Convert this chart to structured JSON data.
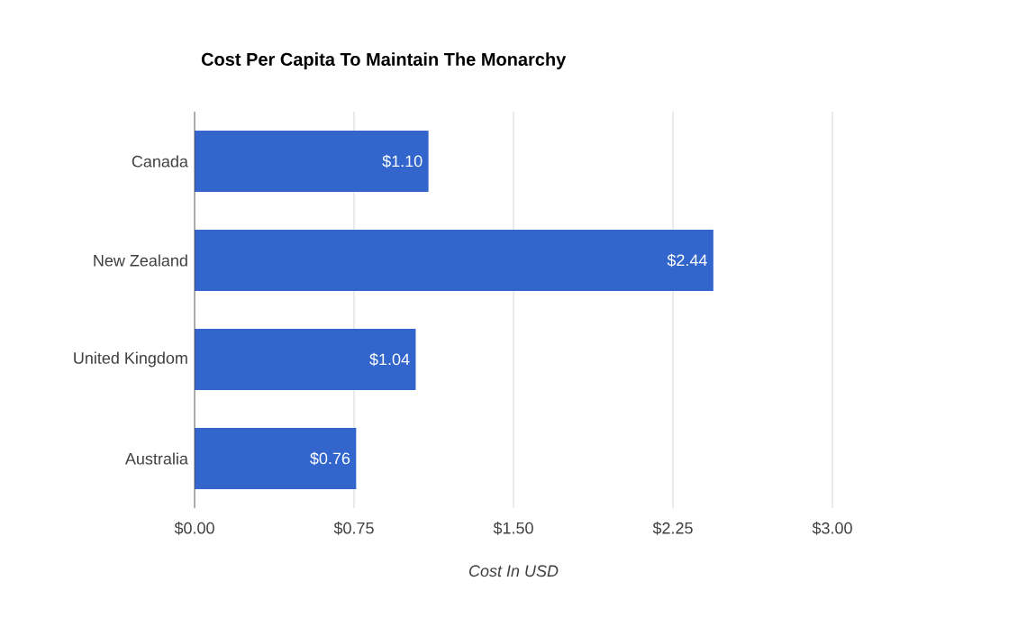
{
  "chart_data": {
    "type": "bar",
    "orientation": "horizontal",
    "title": "Cost Per Capita To Maintain The Monarchy",
    "xlabel": "Cost In USD",
    "categories": [
      "Canada",
      "New Zealand",
      "United Kingdom",
      "Australia"
    ],
    "values": [
      1.1,
      2.44,
      1.04,
      0.76
    ],
    "value_labels": [
      "$1.10",
      "$2.44",
      "$1.04",
      "$0.76"
    ],
    "color": "#3366cc",
    "xlim": [
      0,
      3.0
    ],
    "xticks": [
      {
        "value": 0,
        "label": "$0.00"
      },
      {
        "value": 0.75,
        "label": "$0.75"
      },
      {
        "value": 1.5,
        "label": "$1.50"
      },
      {
        "value": 2.25,
        "label": "$2.25"
      },
      {
        "value": 3.0,
        "label": "$3.00"
      }
    ],
    "grid": "x"
  }
}
